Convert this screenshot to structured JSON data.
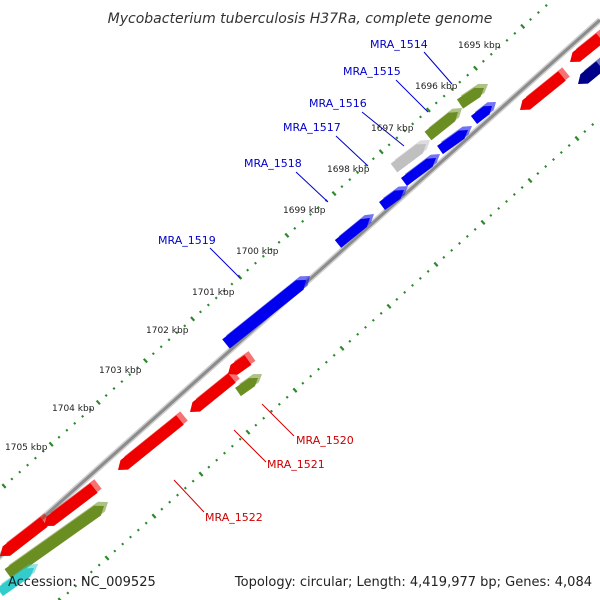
{
  "title": "Mycobacterium tuberculosis H37Ra, complete genome",
  "accession": "Accession: NC_009525",
  "summary": "Topology: circular; Length: 4,419,977 bp; Genes: 4,084",
  "colors": {
    "backbone": "#8c8c8c",
    "tick": "#2a8a2a",
    "blue": "#0000ee",
    "navy": "#000088",
    "red": "#ee0000",
    "olive": "#6b8e23",
    "grey": "#c0c0c0",
    "cyan": "#33cccc",
    "label_blue": "#0000cc",
    "label_red": "#cc0000"
  },
  "scale_labels": [
    "1695 kbp",
    "1696 kbp",
    "1697 kbp",
    "1698 kbp",
    "1699 kbp",
    "1700 kbp",
    "1701 kbp",
    "1702 kbp",
    "1703 kbp",
    "1704 kbp",
    "1705 kbp"
  ],
  "gene_labels": [
    "MRA_1514",
    "MRA_1515",
    "MRA_1516",
    "MRA_1517",
    "MRA_1518",
    "MRA_1519",
    "MRA_1520",
    "MRA_1521",
    "MRA_1522"
  ]
}
